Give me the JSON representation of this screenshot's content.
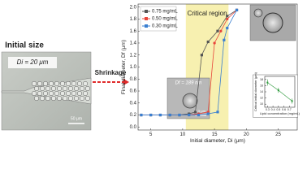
{
  "labels": {
    "initial_size": "Initial size",
    "initial_diameter": "Di = 20 μm",
    "scale_left": "50 μm",
    "shrinkage": "Shrinkage",
    "tem_label": "Df = 189 nm",
    "tem_scale": "0.5 μm"
  },
  "chart_data": [
    {
      "type": "line",
      "x_label": "Initial diameter, Di (μm)",
      "y_label": "Final diameter, Df (μm)",
      "xlim": [
        3,
        28
      ],
      "xticks": [
        5,
        10,
        15,
        20,
        25
      ],
      "ylim": [
        -0.05,
        2.05
      ],
      "yticks": [
        {
          "value": 0,
          "label": "0.0"
        },
        0.2,
        0.4,
        0.6,
        0.8,
        {
          "value": 1,
          "label": "1.0"
        },
        1.2,
        1.4,
        1.6,
        1.8,
        {
          "value": 2,
          "label": "2.0"
        }
      ],
      "highlight": {
        "label": "Critical region",
        "xrange": [
          10.5,
          17.2
        ],
        "color": "#f7f0b0"
      },
      "legend": "top-left",
      "series": [
        {
          "name": "0.75 mg/mL",
          "color": "#555555",
          "marker": "square",
          "x": [
            3.5,
            5,
            6.5,
            8,
            9.5,
            11,
            12,
            13,
            14,
            15.5,
            17,
            18.5
          ],
          "values": [
            0.2,
            0.2,
            0.2,
            0.2,
            0.2,
            0.22,
            0.25,
            1.2,
            1.42,
            1.6,
            1.85,
            1.95
          ]
        },
        {
          "name": "0.50 mg/mL",
          "color": "#e8443a",
          "marker": "circle",
          "x": [
            3.5,
            5,
            6.5,
            8,
            9.5,
            11,
            12.5,
            14,
            15,
            16,
            17,
            18.5
          ],
          "values": [
            0.2,
            0.2,
            0.2,
            0.2,
            0.2,
            0.2,
            0.22,
            0.25,
            1.4,
            1.6,
            1.8,
            1.95
          ]
        },
        {
          "name": "0.30 mg/mL",
          "color": "#3a7fd0",
          "marker": "square",
          "x": [
            3.5,
            5,
            6.5,
            8,
            9.5,
            11,
            12.5,
            14,
            15.5,
            16.5,
            17,
            18.5
          ],
          "values": [
            0.2,
            0.2,
            0.2,
            0.2,
            0.2,
            0.2,
            0.2,
            0.22,
            0.25,
            1.45,
            1.65,
            1.95
          ]
        }
      ]
    },
    {
      "type": "line",
      "x_label": "Lipid concentration (mg/mL)",
      "y_label": "Critical initial diameter (μm)",
      "xlim": [
        0.25,
        0.8
      ],
      "xticks": [
        0.3,
        0.4,
        0.5,
        0.6,
        0.7
      ],
      "ylim": [
        9,
        19
      ],
      "yticks": [
        10,
        12,
        14,
        16,
        18
      ],
      "series": [
        {
          "name": "critical",
          "color": "#2e9a3c",
          "marker": "square",
          "x": [
            0.3,
            0.5,
            0.75
          ],
          "values": [
            17,
            14.5,
            11
          ],
          "errors": [
            1,
            0.8,
            0.8
          ]
        }
      ]
    }
  ]
}
